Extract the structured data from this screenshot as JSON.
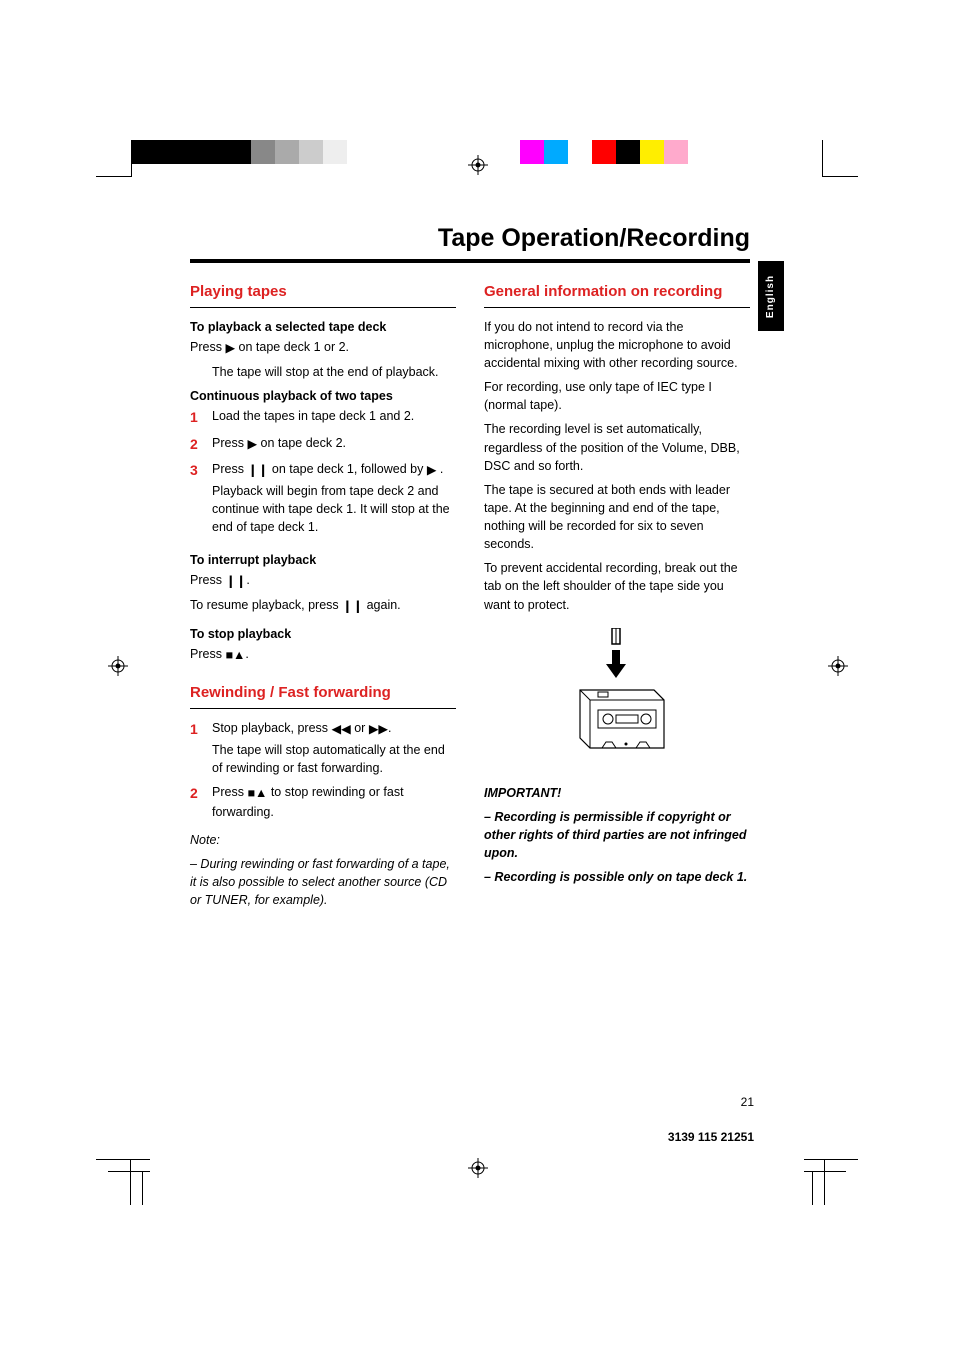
{
  "language_tab": "English",
  "title": "Tape Operation/Recording",
  "page_number": "21",
  "doc_id": "3139 115 21251",
  "playing": {
    "heading": "Playing tapes",
    "sub1": "To playback a selected tape deck",
    "p1a": "Press ",
    "p1b": " on tape deck 1 or 2.",
    "p1_indent": "The tape will stop at the end of playback.",
    "sub2": "Continuous playback of two tapes",
    "s1": "Load the tapes in tape deck 1 and 2.",
    "s2a": "Press ",
    "s2b": " on tape deck 2.",
    "s3a": "Press  ",
    "s3b": " on tape deck 1, followed by ",
    "s3c": " .",
    "s3_indent": "Playback will begin from tape deck 2 and continue with tape deck 1.  It will stop at the end of tape deck 1.",
    "sub3": "To interrupt playback",
    "p3a": "Press  ",
    "p3b": ".",
    "p3c_a": "To resume playback, press  ",
    "p3c_b": " again.",
    "sub4": "To stop playback",
    "p4a": "Press ",
    "p4b": "."
  },
  "rewind": {
    "heading": "Rewinding / Fast forwarding",
    "s1a": "Stop playback, press ",
    "s1b": " or ",
    "s1c": ".",
    "s1_indent": "The tape will stop automatically at the end of rewinding or fast forwarding.",
    "s2a": "Press ",
    "s2b": " to stop rewinding or fast forwarding.",
    "note_label": "Note:",
    "note": "–  During rewinding or fast forwarding of a tape, it is also possible to select another source (CD or TUNER, for example)."
  },
  "general": {
    "heading": "General information on recording",
    "p1": "If you do not intend to record via the microphone, unplug the microphone to avoid accidental mixing with other recording source.",
    "p2": "For recording, use only tape of IEC type I (normal tape).",
    "p3": "The recording level is set automatically, regardless of the position of the Volume, DBB, DSC and so forth.",
    "p4": "The tape is secured at both ends with leader tape.  At the beginning and end of the tape, nothing will be recorded for six to seven seconds.",
    "p5": "To prevent accidental recording, break out the tab on the left shoulder of the tape side you want to protect.",
    "important": "IMPORTANT!",
    "imp1": "–  Recording is permissible if copyright or other rights of third parties are not infringed upon.",
    "imp2": "–  Recording is possible only on tape deck 1."
  },
  "colorbars": {
    "left": [
      "#000000",
      "#000000",
      "#000000",
      "#000000",
      "#000000",
      "#888888",
      "#aaaaaa",
      "#cccccc",
      "#eeeeee",
      "#ffffff"
    ],
    "right": [
      "#ff00ff",
      "#00aaff",
      "#ffffff",
      "#ff0000",
      "#000000",
      "#ffee00",
      "#ffaacc",
      "#ffffff"
    ]
  }
}
